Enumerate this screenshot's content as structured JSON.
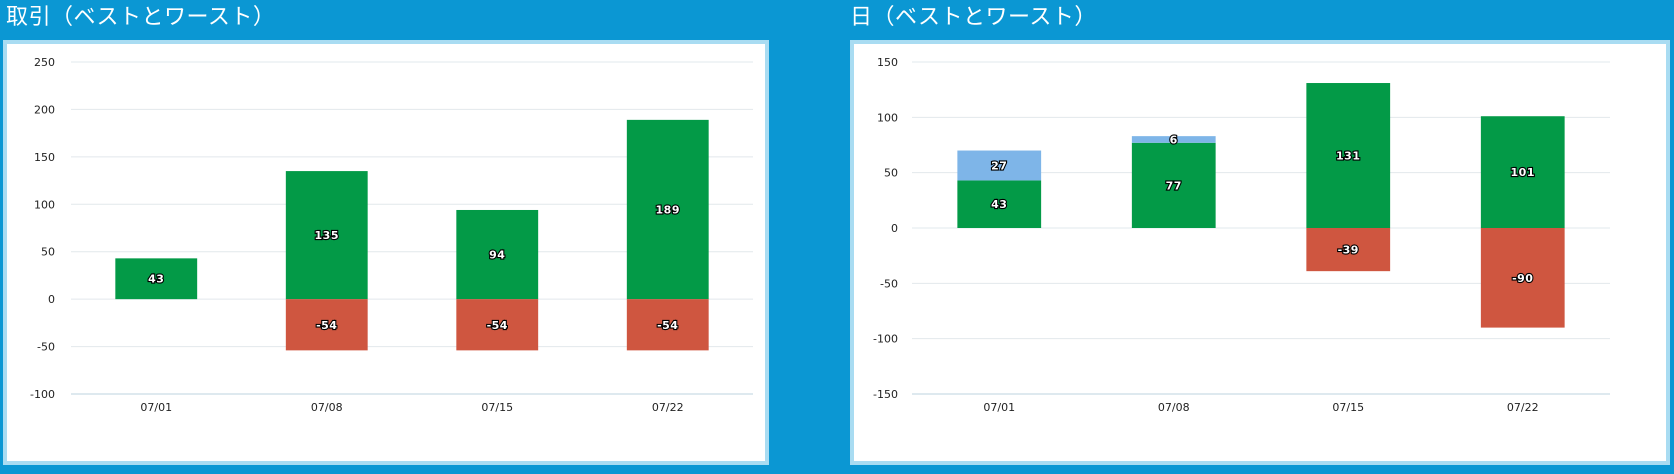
{
  "panels": [
    {
      "title": "取引（ベストとワースト）"
    },
    {
      "title": "日（ベストとワースト）"
    }
  ],
  "colors": {
    "background": "#0b97d3",
    "panel_border": "#a9dcf2",
    "best": "#039a47",
    "worst": "#cf5640",
    "extra": "#7eb5e8",
    "grid": "#e2e8ec"
  },
  "chart_data": [
    {
      "type": "bar",
      "stacked": true,
      "categories": [
        "07/01",
        "07/08",
        "07/15",
        "07/22"
      ],
      "ylim": [
        -100,
        250
      ],
      "yticks": [
        250,
        200,
        150,
        100,
        50,
        0,
        -50,
        -100
      ],
      "grid": true,
      "series": [
        {
          "color": "#039a47",
          "values": [
            43,
            135,
            94,
            189
          ]
        },
        {
          "color": "#cf5640",
          "values": [
            null,
            -54,
            -54,
            -54
          ]
        }
      ]
    },
    {
      "type": "bar",
      "stacked": true,
      "categories": [
        "07/01",
        "07/08",
        "07/15",
        "07/22"
      ],
      "ylim": [
        -150,
        150
      ],
      "yticks": [
        150,
        100,
        50,
        0,
        -50,
        -100,
        -150
      ],
      "grid": true,
      "series": [
        {
          "color": "#039a47",
          "values": [
            43,
            77,
            131,
            101
          ]
        },
        {
          "color": "#7eb5e8",
          "values": [
            27,
            6,
            null,
            null
          ]
        },
        {
          "color": "#cf5640",
          "values": [
            null,
            null,
            -39,
            -90
          ]
        }
      ]
    }
  ]
}
